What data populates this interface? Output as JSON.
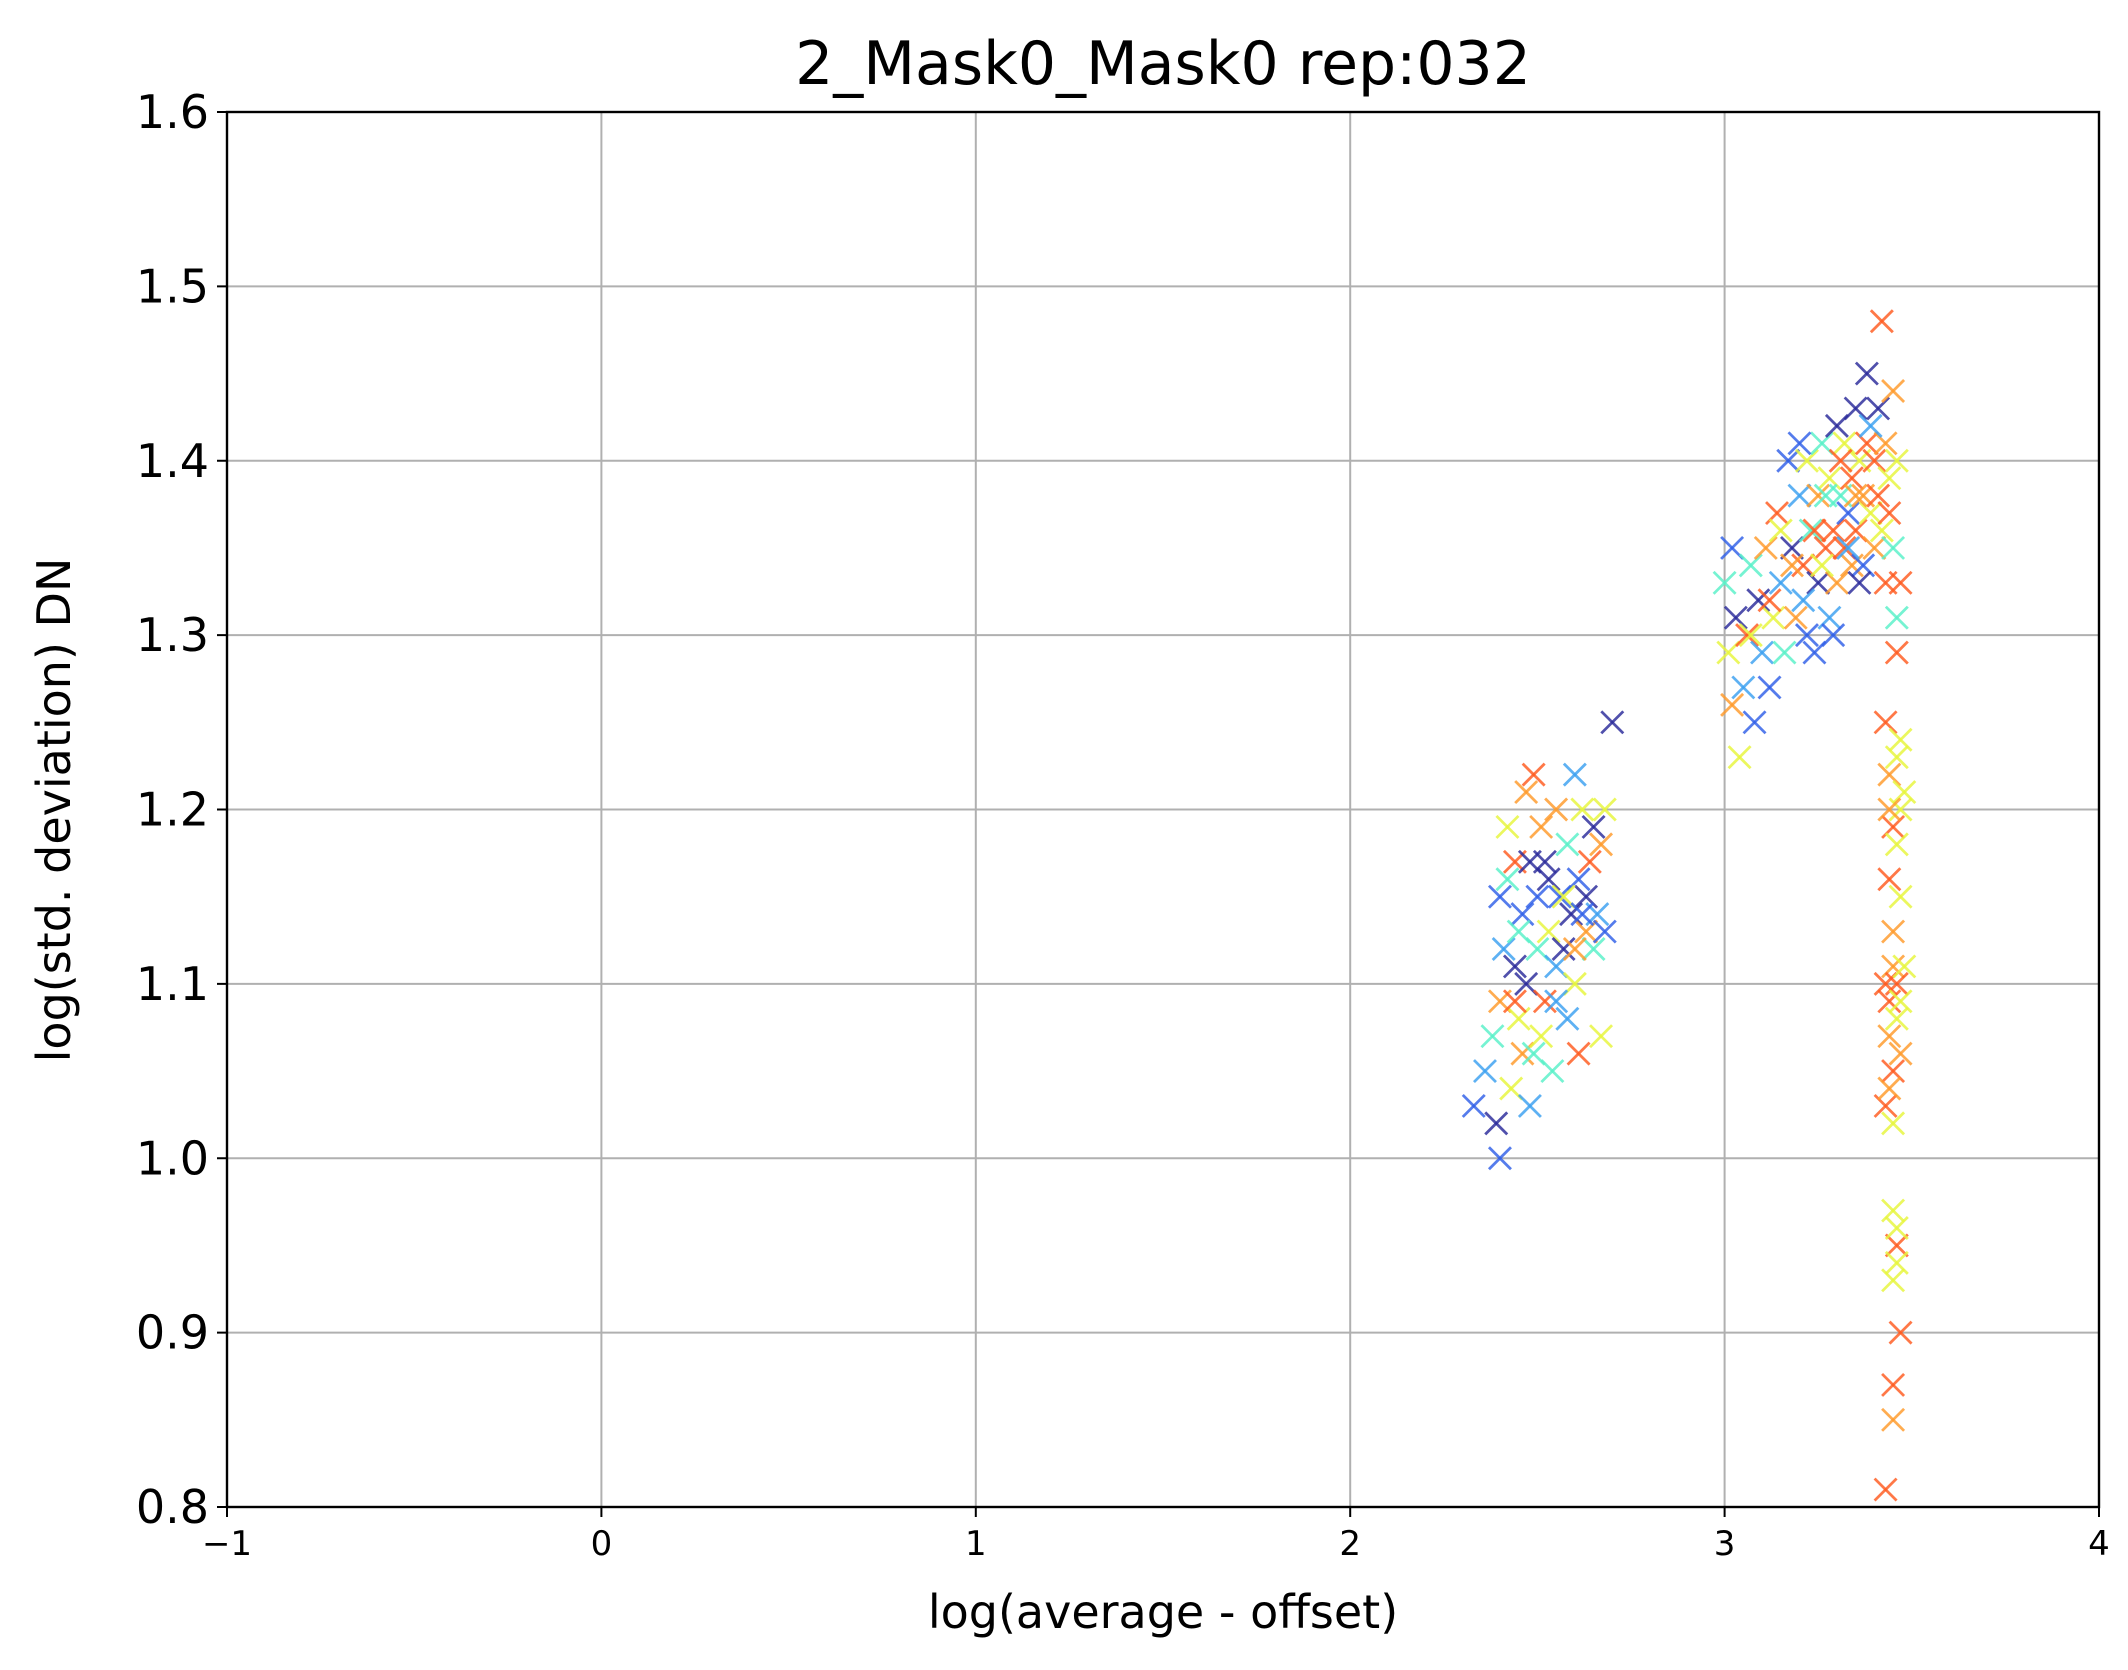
{
  "chart_data": {
    "type": "scatter",
    "title": "2_Mask0_Mask0 rep:032",
    "xlabel": "log(average - offset)",
    "ylabel": "log(std. deviation) DN",
    "xlim": [
      -1,
      4
    ],
    "ylim": [
      0.8,
      1.6
    ],
    "xticks": [
      -1,
      0,
      1,
      2,
      3,
      4
    ],
    "xtick_labels": [
      "−1",
      "0",
      "1",
      "2",
      "3",
      "4"
    ],
    "yticks": [
      0.8,
      0.9,
      1.0,
      1.1,
      1.2,
      1.3,
      1.4,
      1.5,
      1.6
    ],
    "ytick_labels": [
      "0.8",
      "0.9",
      "1.0",
      "1.1",
      "1.2",
      "1.3",
      "1.4",
      "1.5",
      "1.6"
    ],
    "grid": true,
    "marker": "x",
    "palette": [
      "#2a2a9a",
      "#2f5fe8",
      "#3aa0f0",
      "#58f0c8",
      "#e6f53a",
      "#ff9a2a",
      "#ff5a1e"
    ],
    "points": [
      [
        2.33,
        1.03,
        1
      ],
      [
        2.36,
        1.05,
        2
      ],
      [
        2.38,
        1.07,
        3
      ],
      [
        2.39,
        1.02,
        0
      ],
      [
        2.4,
        1.0,
        1
      ],
      [
        2.4,
        1.09,
        5
      ],
      [
        2.41,
        1.12,
        2
      ],
      [
        2.42,
        1.16,
        3
      ],
      [
        2.43,
        1.04,
        4
      ],
      [
        2.44,
        1.11,
        0
      ],
      [
        2.44,
        1.17,
        6
      ],
      [
        2.45,
        1.08,
        4
      ],
      [
        2.46,
        1.14,
        1
      ],
      [
        2.46,
        1.06,
        5
      ],
      [
        2.47,
        1.1,
        0
      ],
      [
        2.48,
        1.17,
        0
      ],
      [
        2.48,
        1.03,
        2
      ],
      [
        2.49,
        1.22,
        6
      ],
      [
        2.5,
        1.15,
        1
      ],
      [
        2.5,
        1.12,
        3
      ],
      [
        2.51,
        1.07,
        4
      ],
      [
        2.51,
        1.19,
        5
      ],
      [
        2.52,
        1.09,
        6
      ],
      [
        2.53,
        1.16,
        0
      ],
      [
        2.53,
        1.13,
        4
      ],
      [
        2.54,
        1.05,
        3
      ],
      [
        2.55,
        1.2,
        5
      ],
      [
        2.55,
        1.11,
        2
      ],
      [
        2.56,
        1.15,
        1
      ],
      [
        2.57,
        1.12,
        0
      ],
      [
        2.58,
        1.08,
        2
      ],
      [
        2.58,
        1.18,
        3
      ],
      [
        2.59,
        1.14,
        0
      ],
      [
        2.6,
        1.22,
        2
      ],
      [
        2.6,
        1.1,
        4
      ],
      [
        2.61,
        1.16,
        1
      ],
      [
        2.61,
        1.06,
        6
      ],
      [
        2.62,
        1.2,
        4
      ],
      [
        2.63,
        1.13,
        5
      ],
      [
        2.63,
        1.15,
        0
      ],
      [
        2.64,
        1.17,
        6
      ],
      [
        2.65,
        1.12,
        3
      ],
      [
        2.65,
        1.19,
        0
      ],
      [
        2.66,
        1.14,
        2
      ],
      [
        2.67,
        1.07,
        4
      ],
      [
        2.67,
        1.18,
        5
      ],
      [
        2.68,
        1.13,
        1
      ],
      [
        2.68,
        1.2,
        4
      ],
      [
        2.7,
        1.25,
        0
      ],
      [
        2.42,
        1.19,
        4
      ],
      [
        2.45,
        1.13,
        3
      ],
      [
        2.47,
        1.21,
        5
      ],
      [
        2.52,
        1.17,
        0
      ],
      [
        2.57,
        1.15,
        4
      ],
      [
        2.62,
        1.14,
        1
      ],
      [
        2.4,
        1.15,
        1
      ],
      [
        2.44,
        1.09,
        6
      ],
      [
        2.49,
        1.06,
        3
      ],
      [
        2.55,
        1.09,
        2
      ],
      [
        2.6,
        1.12,
        5
      ],
      [
        3.0,
        1.33,
        3
      ],
      [
        3.01,
        1.29,
        4
      ],
      [
        3.02,
        1.26,
        5
      ],
      [
        3.02,
        1.35,
        1
      ],
      [
        3.03,
        1.31,
        0
      ],
      [
        3.04,
        1.23,
        4
      ],
      [
        3.05,
        1.27,
        2
      ],
      [
        3.06,
        1.3,
        6
      ],
      [
        3.07,
        1.34,
        3
      ],
      [
        3.08,
        1.25,
        1
      ],
      [
        3.09,
        1.32,
        0
      ],
      [
        3.1,
        1.29,
        2
      ],
      [
        3.11,
        1.35,
        5
      ],
      [
        3.12,
        1.27,
        1
      ],
      [
        3.13,
        1.31,
        4
      ],
      [
        3.14,
        1.37,
        6
      ],
      [
        3.15,
        1.33,
        2
      ],
      [
        3.16,
        1.29,
        3
      ],
      [
        3.17,
        1.4,
        1
      ],
      [
        3.18,
        1.35,
        0
      ],
      [
        3.19,
        1.31,
        5
      ],
      [
        3.2,
        1.38,
        2
      ],
      [
        3.21,
        1.34,
        6
      ],
      [
        3.22,
        1.3,
        1
      ],
      [
        3.22,
        1.4,
        4
      ],
      [
        3.23,
        1.36,
        3
      ],
      [
        3.24,
        1.29,
        1
      ],
      [
        3.25,
        1.38,
        5
      ],
      [
        3.25,
        1.33,
        0
      ],
      [
        3.26,
        1.41,
        3
      ],
      [
        3.27,
        1.35,
        6
      ],
      [
        3.28,
        1.31,
        2
      ],
      [
        3.28,
        1.39,
        4
      ],
      [
        3.29,
        1.36,
        6
      ],
      [
        3.3,
        1.42,
        0
      ],
      [
        3.3,
        1.33,
        5
      ],
      [
        3.31,
        1.38,
        3
      ],
      [
        3.32,
        1.35,
        6
      ],
      [
        3.32,
        1.41,
        4
      ],
      [
        3.33,
        1.37,
        1
      ],
      [
        3.34,
        1.39,
        6
      ],
      [
        3.34,
        1.34,
        5
      ],
      [
        3.35,
        1.43,
        0
      ],
      [
        3.35,
        1.36,
        6
      ],
      [
        3.36,
        1.4,
        4
      ],
      [
        3.37,
        1.38,
        5
      ],
      [
        3.37,
        1.34,
        1
      ],
      [
        3.38,
        1.45,
        0
      ],
      [
        3.38,
        1.41,
        6
      ],
      [
        3.39,
        1.37,
        4
      ],
      [
        3.4,
        1.4,
        6
      ],
      [
        3.4,
        1.35,
        5
      ],
      [
        3.41,
        1.43,
        0
      ],
      [
        3.41,
        1.38,
        6
      ],
      [
        3.42,
        1.48,
        6
      ],
      [
        3.42,
        1.36,
        4
      ],
      [
        3.43,
        1.41,
        5
      ],
      [
        3.43,
        1.33,
        6
      ],
      [
        3.44,
        1.39,
        4
      ],
      [
        3.44,
        1.37,
        6
      ],
      [
        3.45,
        1.44,
        5
      ],
      [
        3.45,
        1.35,
        3
      ],
      [
        3.46,
        1.4,
        4
      ],
      [
        3.46,
        1.31,
        3
      ],
      [
        3.47,
        1.33,
        6
      ],
      [
        3.07,
        1.3,
        4
      ],
      [
        3.12,
        1.32,
        6
      ],
      [
        3.18,
        1.34,
        5
      ],
      [
        3.24,
        1.36,
        6
      ],
      [
        3.29,
        1.3,
        1
      ],
      [
        3.21,
        1.32,
        2
      ],
      [
        3.27,
        1.38,
        3
      ],
      [
        3.33,
        1.35,
        2
      ],
      [
        3.36,
        1.33,
        0
      ],
      [
        3.39,
        1.42,
        2
      ],
      [
        3.15,
        1.36,
        4
      ],
      [
        3.2,
        1.41,
        1
      ],
      [
        3.26,
        1.34,
        4
      ],
      [
        3.31,
        1.4,
        6
      ],
      [
        3.35,
        1.38,
        5
      ],
      [
        3.43,
        1.25,
        6
      ],
      [
        3.44,
        1.22,
        5
      ],
      [
        3.45,
        1.19,
        6
      ],
      [
        3.46,
        1.23,
        4
      ],
      [
        3.47,
        1.2,
        4
      ],
      [
        3.44,
        1.16,
        6
      ],
      [
        3.45,
        1.13,
        5
      ],
      [
        3.46,
        1.18,
        4
      ],
      [
        3.47,
        1.15,
        4
      ],
      [
        3.48,
        1.21,
        4
      ],
      [
        3.43,
        1.1,
        6
      ],
      [
        3.44,
        1.09,
        6
      ],
      [
        3.45,
        1.11,
        5
      ],
      [
        3.46,
        1.1,
        6
      ],
      [
        3.47,
        1.09,
        4
      ],
      [
        3.44,
        1.07,
        5
      ],
      [
        3.45,
        1.05,
        6
      ],
      [
        3.46,
        1.08,
        4
      ],
      [
        3.47,
        1.06,
        5
      ],
      [
        3.48,
        1.11,
        4
      ],
      [
        3.43,
        1.03,
        6
      ],
      [
        3.44,
        1.04,
        5
      ],
      [
        3.45,
        1.02,
        4
      ],
      [
        3.46,
        1.29,
        6
      ],
      [
        3.47,
        1.24,
        4
      ],
      [
        3.45,
        0.97,
        4
      ],
      [
        3.46,
        0.95,
        6
      ],
      [
        3.45,
        0.93,
        4
      ],
      [
        3.46,
        0.94,
        4
      ],
      [
        3.47,
        0.9,
        6
      ],
      [
        3.45,
        0.87,
        6
      ],
      [
        3.45,
        0.85,
        5
      ],
      [
        3.43,
        0.81,
        6
      ],
      [
        3.46,
        0.96,
        4
      ],
      [
        3.44,
        1.2,
        5
      ]
    ]
  }
}
